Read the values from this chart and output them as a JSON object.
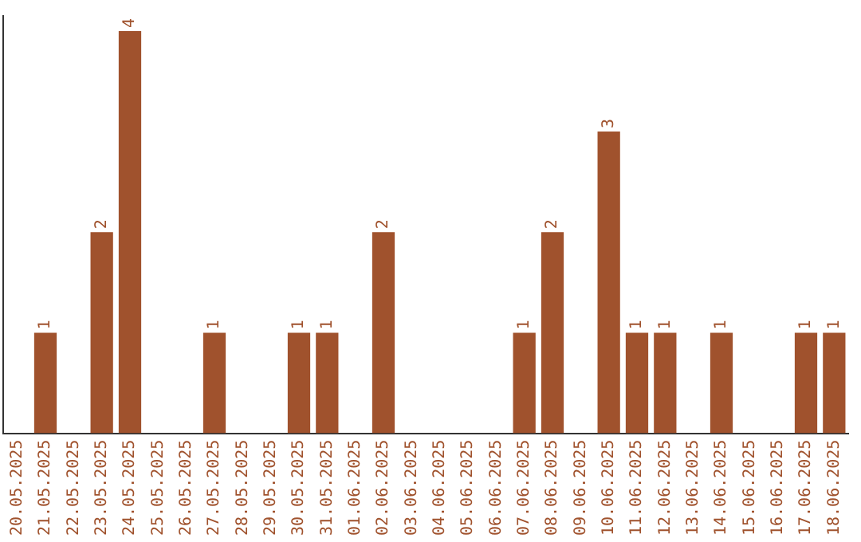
{
  "chart_data": {
    "type": "bar",
    "categories": [
      "20.05.2025",
      "21.05.2025",
      "22.05.2025",
      "23.05.2025",
      "24.05.2025",
      "25.05.2025",
      "26.05.2025",
      "27.05.2025",
      "28.05.2025",
      "29.05.2025",
      "30.05.2025",
      "31.05.2025",
      "01.06.2025",
      "02.06.2025",
      "03.06.2025",
      "04.06.2025",
      "05.06.2025",
      "06.06.2025",
      "07.06.2025",
      "08.06.2025",
      "09.06.2025",
      "10.06.2025",
      "11.06.2025",
      "12.06.2025",
      "13.06.2025",
      "14.06.2025",
      "15.06.2025",
      "16.06.2025",
      "17.06.2025",
      "18.06.2025"
    ],
    "values": [
      0,
      1,
      0,
      2,
      4,
      0,
      0,
      1,
      0,
      0,
      1,
      1,
      0,
      2,
      0,
      0,
      0,
      0,
      1,
      2,
      0,
      3,
      1,
      1,
      0,
      1,
      0,
      0,
      1,
      1
    ],
    "value_labels": [
      null,
      "1",
      null,
      "2",
      "4",
      null,
      null,
      "1",
      null,
      null,
      "1",
      "1",
      null,
      "2",
      null,
      null,
      null,
      null,
      "1",
      "2",
      null,
      "3",
      "1",
      "1",
      null,
      "1",
      null,
      null,
      "1",
      "1"
    ],
    "color": "#a0522d",
    "ylim": [
      0,
      4.15
    ],
    "tick_labels": "x",
    "grid": false,
    "legend": false
  }
}
